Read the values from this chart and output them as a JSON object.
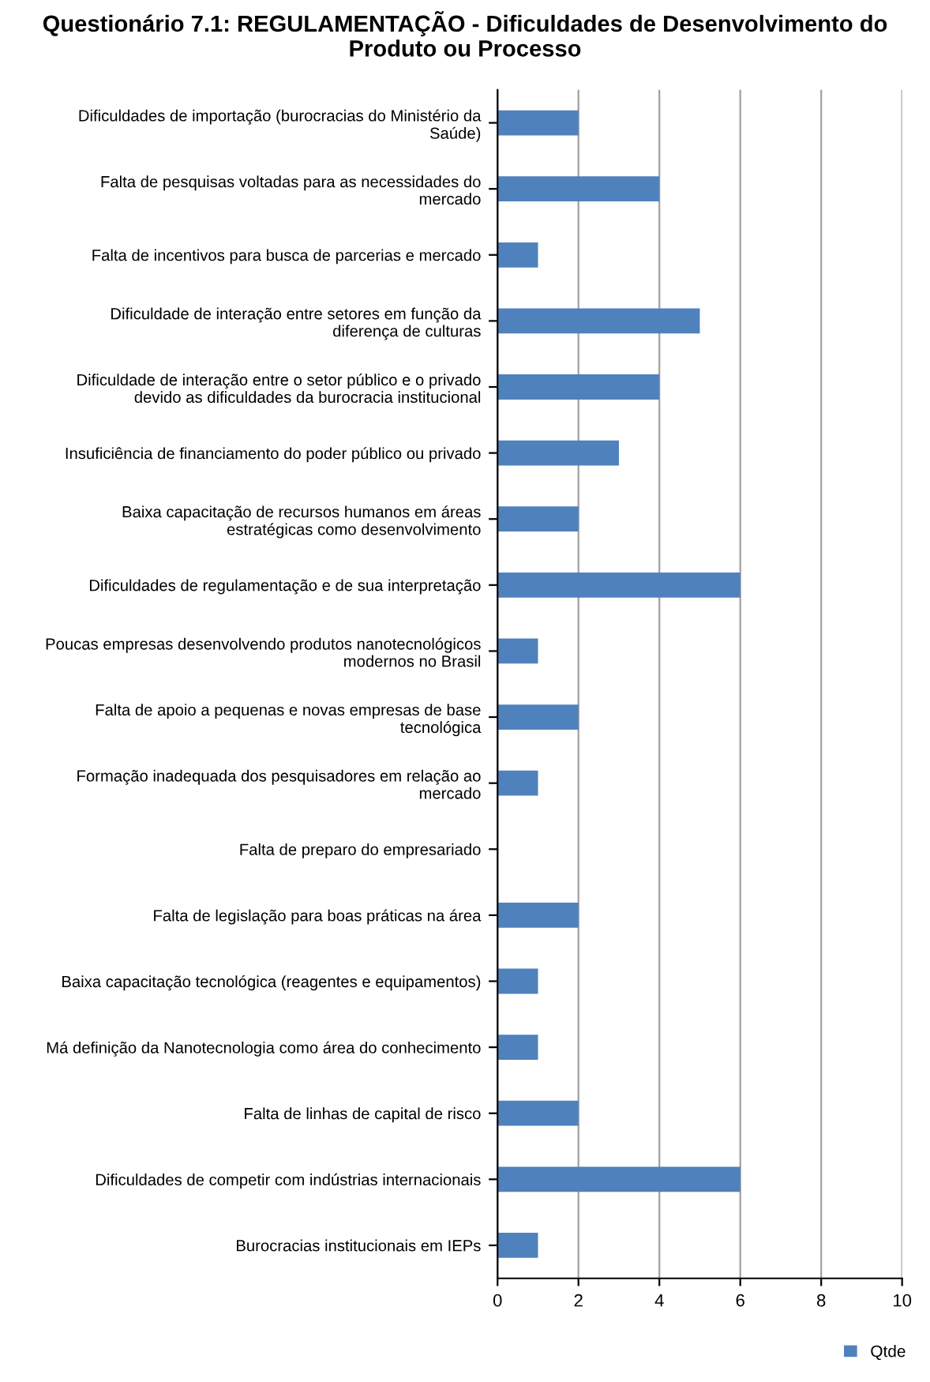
{
  "chart_data": {
    "type": "bar",
    "orientation": "horizontal",
    "title": "Questionário 7.1: REGULAMENTAÇÃO - Dificuldades de Desenvolvimento do\nProduto ou Processo",
    "categories": [
      "Dificuldades de importação (burocracias do Ministério da\nSaúde)",
      "Falta de pesquisas voltadas para as necessidades do\nmercado",
      "Falta de incentivos para busca de parcerias e mercado",
      "Dificuldade de interação entre setores em função da\ndiferença de culturas",
      "Dificuldade de interação entre o setor público e o privado\ndevido as dificuldades da burocracia institucional",
      "Insuficiência de financiamento do poder público ou privado",
      "Baixa capacitação de recursos humanos em áreas\nestratégicas como desenvolvimento",
      "Dificuldades de regulamentação e de sua interpretação",
      "Poucas empresas desenvolvendo produtos nanotecnológicos\nmodernos no Brasil",
      "Falta de apoio a pequenas e novas empresas de base\ntecnológica",
      "Formação inadequada dos pesquisadores em relação ao\nmercado",
      "Falta de preparo do empresariado",
      "Falta de legislação para boas práticas na área",
      "Baixa capacitação tecnológica (reagentes e equipamentos)",
      "Má definição da Nanotecnologia como área do conhecimento",
      "Falta de linhas de capital de risco",
      "Dificuldades de competir com indústrias internacionais",
      "Burocracias institucionais em IEPs"
    ],
    "series": [
      {
        "name": "Qtde",
        "color": "#4f81bd",
        "values": [
          2,
          4,
          1,
          5,
          4,
          3,
          2,
          6,
          1,
          2,
          1,
          0,
          2,
          1,
          1,
          2,
          6,
          1
        ]
      }
    ],
    "xlim": [
      0,
      10
    ],
    "xticks": [
      0,
      2,
      4,
      6,
      8,
      10
    ],
    "grid": "x",
    "legend": "bottom right"
  }
}
